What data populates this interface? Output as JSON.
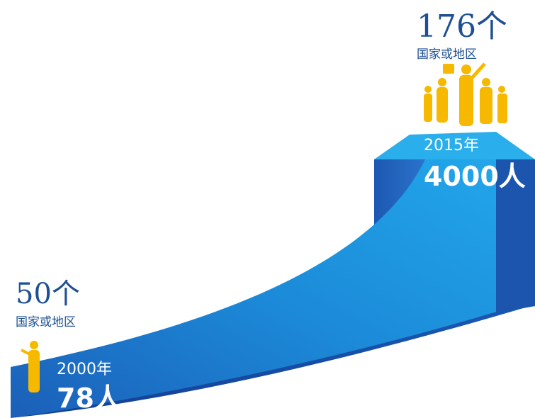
{
  "start": {
    "count": "50个",
    "region": "国家或地区",
    "year": "2000年",
    "people": "78人"
  },
  "end": {
    "count": "176个",
    "region": "国家或地区",
    "year": "2015年",
    "people": "4000人"
  }
}
